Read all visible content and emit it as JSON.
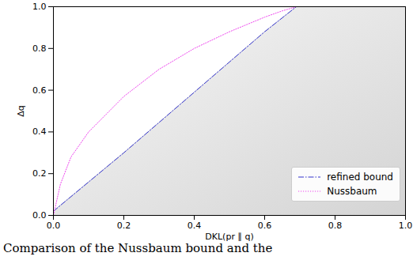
{
  "chart_data": {
    "type": "line",
    "x_label": "DKL(pr ∥ q)",
    "y_label": "Δq",
    "caption": "Comparison of the Nussbaum bound and the",
    "xlim": [
      0,
      1
    ],
    "ylim": [
      0,
      1
    ],
    "xticks": [
      {
        "value": 0,
        "label": "0.0"
      },
      {
        "value": 0.2,
        "label": "0.2"
      },
      {
        "value": 0.4,
        "label": "0.4"
      },
      {
        "value": 0.6,
        "label": "0.6"
      },
      {
        "value": 0.8,
        "label": "0.8"
      },
      {
        "value": 1,
        "label": "1.0"
      }
    ],
    "yticks": [
      {
        "value": 0,
        "label": "0.0"
      },
      {
        "value": 0.2,
        "label": "0.2"
      },
      {
        "value": 0.4,
        "label": "0.4"
      },
      {
        "value": 0.6,
        "label": "0.6"
      },
      {
        "value": 0.8,
        "label": "0.8"
      },
      {
        "value": 1,
        "label": "1.0"
      }
    ],
    "legend": "lower right",
    "series": [
      {
        "name": "refined bound",
        "color": "#3333cc",
        "line_style": "dashdot",
        "x": [
          0,
          0.2,
          0.4,
          0.6,
          0.69,
          1.0
        ],
        "values": [
          0.02,
          0.3,
          0.59,
          0.88,
          1.0,
          1.0
        ]
      },
      {
        "name": "Nussbaum",
        "color": "#ee44ee",
        "line_style": "dotted",
        "x": [
          0,
          0.02,
          0.05,
          0.1,
          0.2,
          0.3,
          0.4,
          0.5,
          0.6,
          0.65,
          0.69,
          1.0
        ],
        "values": [
          0,
          0.15,
          0.28,
          0.4,
          0.57,
          0.7,
          0.8,
          0.88,
          0.95,
          0.98,
          1.0,
          1.0
        ]
      }
    ]
  }
}
